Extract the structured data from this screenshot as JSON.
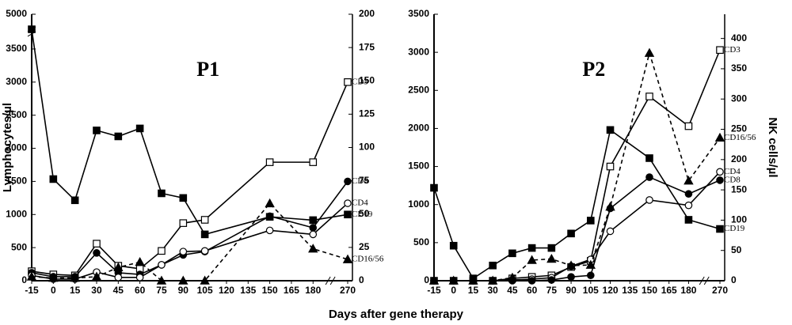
{
  "x_label": "Days after gene therapy",
  "chart_data": [
    {
      "type": "line",
      "title": "P1",
      "ylabel": "Lymphocytes/µl",
      "x": [
        -15,
        0,
        15,
        30,
        45,
        60,
        75,
        90,
        105,
        150,
        180,
        270
      ],
      "xlim": [
        -15,
        270
      ],
      "xticks": [
        -15,
        0,
        15,
        30,
        45,
        60,
        75,
        90,
        105,
        120,
        135,
        150,
        165,
        180,
        270
      ],
      "xbreak": true,
      "ylim": [
        0,
        5000
      ],
      "yticks": [
        0,
        500,
        1000,
        1500,
        2000,
        2500,
        3000,
        3500,
        5000
      ],
      "ybreak": true,
      "y2lim": [
        0,
        200
      ],
      "y2ticks": [
        0,
        25,
        50,
        75,
        100,
        125,
        150,
        175,
        200
      ],
      "series": [
        {
          "name": "CD3",
          "color": "#000000",
          "marker": "open-square",
          "dashed": false,
          "values": [
            143,
            95,
            80,
            560,
            226,
            180,
            450,
            870,
            920,
            1790,
            1790,
            3000
          ]
        },
        {
          "name": "CD8",
          "color": "#000000",
          "marker": "filled-circle",
          "dashed": false,
          "values": [
            120,
            60,
            60,
            420,
            120,
            95,
            240,
            390,
            440,
            975,
            800,
            1500
          ]
        },
        {
          "name": "CD4",
          "color": "#000000",
          "marker": "open-circle",
          "dashed": false,
          "values": [
            80,
            25,
            25,
            130,
            50,
            50,
            240,
            440,
            450,
            760,
            700,
            1170
          ]
        },
        {
          "name": "CD19",
          "color": "#000000",
          "marker": "filled-square",
          "dashed": false,
          "values": [
            4350,
            1535,
            1215,
            2270,
            2180,
            2300,
            1320,
            1250,
            700,
            965,
            915,
            1000
          ]
        },
        {
          "name": "CD16/56",
          "color": "#000000",
          "marker": "filled-triangle",
          "dashed": true,
          "axis": "y2",
          "values": [
            3,
            2,
            2,
            3,
            10,
            14,
            0,
            0,
            0,
            58,
            24,
            16
          ]
        }
      ]
    },
    {
      "type": "line",
      "title": "P2",
      "y2label": "NK cells/µl",
      "x": [
        -15,
        0,
        15,
        30,
        45,
        60,
        75,
        90,
        105,
        120,
        150,
        180,
        270
      ],
      "xlim": [
        -15,
        270
      ],
      "xticks": [
        -15,
        0,
        15,
        30,
        45,
        60,
        75,
        90,
        105,
        120,
        135,
        150,
        165,
        180,
        270
      ],
      "xbreak": true,
      "ylim": [
        0,
        3500
      ],
      "yticks": [
        0,
        500,
        1000,
        1500,
        2000,
        2500,
        3000,
        3500
      ],
      "y2lim": [
        0,
        440
      ],
      "y2ticks": [
        0,
        50,
        100,
        150,
        200,
        250,
        300,
        350,
        400
      ],
      "series": [
        {
          "name": "CD3",
          "color": "#000000",
          "marker": "open-square",
          "dashed": false,
          "values": [
            0,
            0,
            0,
            0,
            30,
            50,
            70,
            180,
            260,
            1500,
            2420,
            2030,
            3030
          ]
        },
        {
          "name": "CD4",
          "color": "#000000",
          "marker": "open-circle",
          "dashed": false,
          "values": [
            0,
            0,
            0,
            0,
            10,
            20,
            40,
            190,
            280,
            650,
            1060,
            990,
            1430
          ]
        },
        {
          "name": "CD8",
          "color": "#000000",
          "marker": "filled-circle",
          "dashed": false,
          "values": [
            0,
            0,
            0,
            0,
            0,
            0,
            10,
            50,
            70,
            950,
            1360,
            1140,
            1320
          ]
        },
        {
          "name": "CD19",
          "color": "#000000",
          "marker": "filled-square",
          "dashed": false,
          "values": [
            1220,
            460,
            30,
            200,
            360,
            430,
            430,
            620,
            790,
            1980,
            1610,
            800,
            680
          ]
        },
        {
          "name": "CD16/56",
          "color": "#000000",
          "marker": "filled-triangle",
          "dashed": true,
          "axis": "y2",
          "values": [
            0,
            0,
            0,
            0,
            5,
            34,
            36,
            25,
            26,
            122,
            376,
            165,
            236
          ]
        }
      ]
    }
  ]
}
